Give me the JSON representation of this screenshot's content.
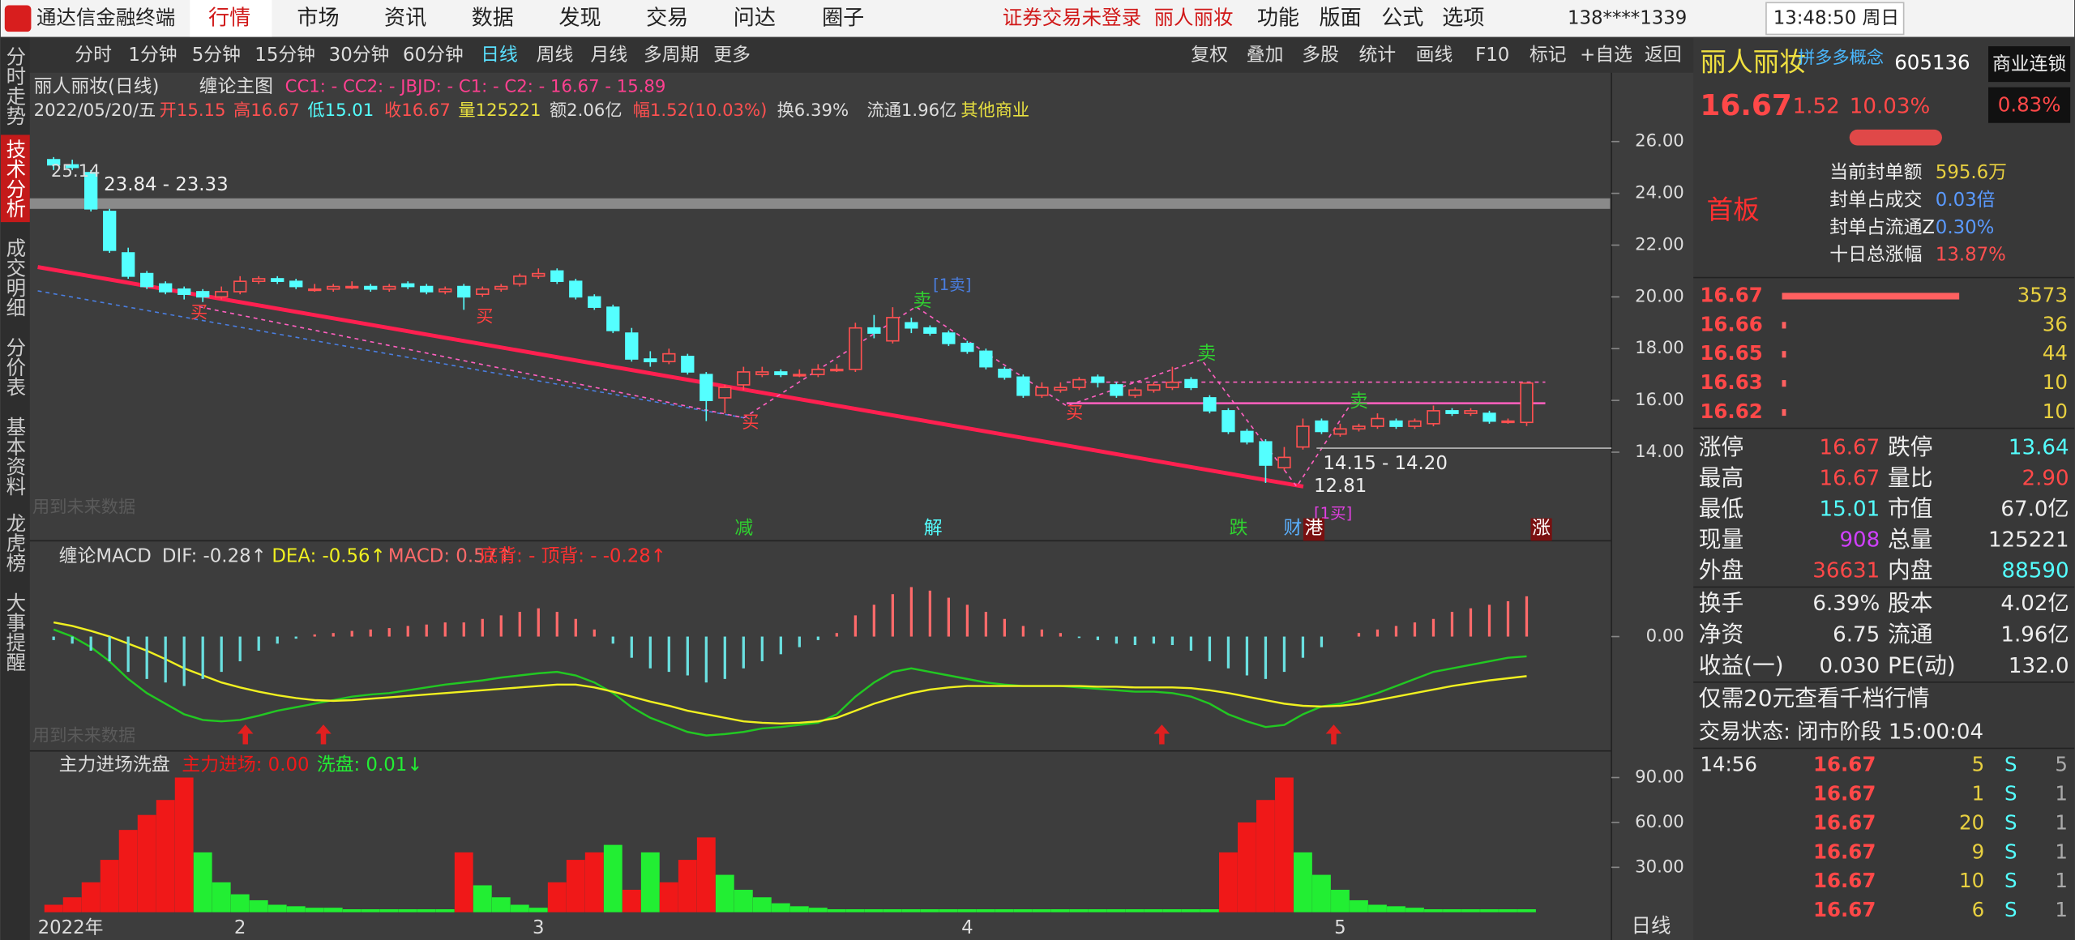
{
  "menu": {
    "app": "通达信金融终端",
    "items": [
      "行情",
      "市场",
      "资讯",
      "数据",
      "发现",
      "交易",
      "问达",
      "圈子"
    ],
    "notice": "证券交易未登录",
    "stock": "丽人丽妆",
    "right": [
      "功能",
      "版面",
      "公式",
      "选项"
    ],
    "phone": "138****1339",
    "clock": "13:48:50 周日"
  },
  "sidebar": [
    "分时走势",
    "技术分析",
    "成交明细",
    "分价表",
    "基本资料",
    "龙虎榜",
    "大事提醒"
  ],
  "toolbar": {
    "left": [
      "分时",
      "1分钟",
      "5分钟",
      "15分钟",
      "30分钟",
      "60分钟",
      "日线",
      "周线",
      "月线",
      "多周期",
      "更多"
    ],
    "right": [
      "复权",
      "叠加",
      "多股",
      "统计",
      "画线",
      "F10",
      "标记",
      "+自选",
      "返回"
    ]
  },
  "info": {
    "name": "丽人丽妆(日线)",
    "indicator": "缠论主图",
    "params": "CC1: -  CC2: -  JBJD: -  C1: -  C2: -  16.67 - 15.89",
    "date": "2022/05/20/五",
    "open": "开15.15",
    "high": "高16.67",
    "low": "低15.01",
    "close": "收16.67",
    "volume": "量125221",
    "amount": "额2.06亿",
    "change": "幅1.52(10.03%)",
    "turnover": "换6.39%",
    "float": "流通1.96亿",
    "sector": "其他商业"
  },
  "chart_data": [
    {
      "type": "candlestick",
      "ylim": [
        10.63,
        28.66
      ],
      "yticks": [
        {
          "value": 26,
          "label": "26.00"
        },
        {
          "value": 24,
          "label": "24.00"
        },
        {
          "value": 22,
          "label": "22.00"
        },
        {
          "value": 20,
          "label": "20.00"
        },
        {
          "value": 18,
          "label": "18.00"
        },
        {
          "value": 16,
          "label": "16.00"
        },
        {
          "value": 14,
          "label": "14.00"
        }
      ],
      "candles": [
        [
          25.3,
          25.4,
          24.9,
          25.1
        ],
        [
          25.1,
          25.3,
          24.9,
          25.0
        ],
        [
          24.8,
          24.9,
          23.3,
          23.4
        ],
        [
          23.3,
          23.4,
          21.7,
          21.8
        ],
        [
          21.7,
          21.9,
          20.7,
          20.8
        ],
        [
          20.9,
          21.0,
          20.3,
          20.4
        ],
        [
          20.5,
          20.6,
          20.1,
          20.2
        ],
        [
          20.3,
          20.4,
          19.9,
          20.1
        ],
        [
          20.2,
          20.3,
          19.8,
          20.0
        ],
        [
          20.0,
          20.4,
          19.9,
          20.2
        ],
        [
          20.2,
          20.8,
          20.1,
          20.6
        ],
        [
          20.6,
          20.8,
          20.5,
          20.7
        ],
        [
          20.7,
          20.8,
          20.5,
          20.6
        ],
        [
          20.6,
          20.7,
          20.3,
          20.4
        ],
        [
          20.3,
          20.5,
          20.2,
          20.3
        ],
        [
          20.3,
          20.5,
          20.2,
          20.4
        ],
        [
          20.4,
          20.6,
          20.3,
          20.4
        ],
        [
          20.4,
          20.5,
          20.2,
          20.3
        ],
        [
          20.3,
          20.5,
          20.2,
          20.4
        ],
        [
          20.5,
          20.6,
          20.3,
          20.4
        ],
        [
          20.4,
          20.5,
          20.1,
          20.2
        ],
        [
          20.2,
          20.4,
          20.1,
          20.3
        ],
        [
          20.4,
          20.5,
          19.5,
          20.0
        ],
        [
          20.1,
          20.4,
          20.0,
          20.3
        ],
        [
          20.3,
          20.5,
          20.2,
          20.4
        ],
        [
          20.5,
          20.9,
          20.4,
          20.8
        ],
        [
          20.8,
          21.1,
          20.7,
          20.9
        ],
        [
          21.0,
          21.1,
          20.5,
          20.6
        ],
        [
          20.6,
          20.7,
          19.9,
          20.0
        ],
        [
          20.0,
          20.1,
          19.5,
          19.6
        ],
        [
          19.6,
          19.7,
          18.6,
          18.7
        ],
        [
          18.6,
          18.8,
          17.5,
          17.6
        ],
        [
          17.6,
          17.9,
          17.3,
          17.5
        ],
        [
          17.5,
          18.0,
          17.4,
          17.8
        ],
        [
          17.7,
          17.8,
          17.0,
          17.1
        ],
        [
          17.0,
          17.1,
          15.2,
          16.0
        ],
        [
          16.1,
          16.6,
          15.5,
          16.5
        ],
        [
          16.6,
          17.3,
          16.4,
          17.1
        ],
        [
          17.0,
          17.3,
          16.9,
          17.1
        ],
        [
          17.1,
          17.2,
          16.9,
          17.0
        ],
        [
          17.0,
          17.2,
          16.9,
          17.0
        ],
        [
          17.0,
          17.4,
          16.9,
          17.2
        ],
        [
          17.2,
          17.4,
          17.1,
          17.2
        ],
        [
          17.2,
          19.0,
          17.1,
          18.8
        ],
        [
          18.8,
          19.3,
          18.4,
          18.6
        ],
        [
          18.3,
          19.6,
          18.2,
          19.2
        ],
        [
          19.0,
          19.2,
          18.6,
          18.8
        ],
        [
          18.8,
          18.9,
          18.5,
          18.6
        ],
        [
          18.6,
          18.7,
          18.1,
          18.2
        ],
        [
          18.2,
          18.3,
          17.8,
          17.9
        ],
        [
          17.9,
          18.0,
          17.2,
          17.3
        ],
        [
          17.2,
          17.3,
          16.8,
          16.9
        ],
        [
          16.9,
          17.0,
          16.1,
          16.2
        ],
        [
          16.2,
          16.7,
          16.1,
          16.5
        ],
        [
          16.4,
          16.7,
          16.3,
          16.5
        ],
        [
          16.5,
          16.9,
          16.4,
          16.8
        ],
        [
          16.9,
          17.0,
          16.5,
          16.7
        ],
        [
          16.6,
          16.7,
          16.1,
          16.2
        ],
        [
          16.2,
          16.5,
          16.1,
          16.4
        ],
        [
          16.4,
          16.7,
          16.3,
          16.6
        ],
        [
          16.5,
          17.3,
          16.4,
          16.7
        ],
        [
          16.8,
          16.9,
          16.4,
          16.5
        ],
        [
          16.1,
          16.2,
          15.5,
          15.6
        ],
        [
          15.6,
          15.7,
          14.7,
          14.8
        ],
        [
          14.8,
          14.9,
          14.3,
          14.4
        ],
        [
          14.4,
          14.5,
          12.81,
          13.5
        ],
        [
          13.4,
          14.2,
          13.3,
          13.8
        ],
        [
          14.2,
          15.3,
          14.1,
          15.0
        ],
        [
          15.2,
          15.3,
          14.7,
          14.8
        ],
        [
          14.7,
          15.1,
          14.6,
          14.9
        ],
        [
          14.9,
          15.1,
          14.8,
          15.0
        ],
        [
          15.0,
          15.5,
          14.9,
          15.3
        ],
        [
          15.2,
          15.3,
          14.9,
          15.0
        ],
        [
          15.0,
          15.3,
          14.9,
          15.2
        ],
        [
          15.1,
          15.8,
          15.0,
          15.6
        ],
        [
          15.6,
          15.7,
          15.4,
          15.5
        ],
        [
          15.5,
          15.7,
          15.4,
          15.6
        ],
        [
          15.5,
          15.6,
          15.1,
          15.2
        ],
        [
          15.2,
          15.3,
          15.1,
          15.2
        ],
        [
          15.15,
          16.67,
          15.01,
          16.67
        ]
      ],
      "up_color": "#ff5050",
      "down_color": "#54ffff",
      "annotations": {
        "high_mark": "25.14",
        "range_top": "23.84 - 23.33",
        "range_bottom": "14.15 - 14.20",
        "low_mark": "12.81",
        "sell1": "[1卖]",
        "buy1": "[1买]",
        "future_note": "用到未来数据"
      },
      "signals": {
        "sell": [
          "卖",
          "卖",
          "卖"
        ],
        "buy": [
          "买",
          "买",
          "买",
          "买"
        ],
        "bottom": [
          "减",
          "解",
          "跌",
          "财",
          "港",
          "涨"
        ]
      }
    },
    {
      "type": "macd",
      "title": "缠论MACD",
      "ylim": [
        -1.6,
        1.3
      ],
      "yticks": [
        {
          "value": 0,
          "label": "0.00"
        }
      ],
      "extra_legend": "底背: -  顶背: -  -0.28↑",
      "series": [
        {
          "name": "DIF: -0.28↑",
          "color": "#22c822",
          "values": [
            0.1,
            0.0,
            -0.15,
            -0.35,
            -0.6,
            -0.8,
            -0.95,
            -1.1,
            -1.18,
            -1.2,
            -1.18,
            -1.12,
            -1.05,
            -1.0,
            -0.95,
            -0.9,
            -0.85,
            -0.82,
            -0.8,
            -0.76,
            -0.72,
            -0.68,
            -0.65,
            -0.62,
            -0.58,
            -0.55,
            -0.52,
            -0.5,
            -0.55,
            -0.65,
            -0.8,
            -1.0,
            -1.15,
            -1.25,
            -1.35,
            -1.4,
            -1.38,
            -1.35,
            -1.3,
            -1.28,
            -1.25,
            -1.22,
            -1.1,
            -0.85,
            -0.65,
            -0.5,
            -0.45,
            -0.5,
            -0.55,
            -0.6,
            -0.65,
            -0.68,
            -0.7,
            -0.7,
            -0.7,
            -0.72,
            -0.74,
            -0.76,
            -0.78,
            -0.78,
            -0.8,
            -0.85,
            -0.95,
            -1.1,
            -1.2,
            -1.28,
            -1.25,
            -1.1,
            -0.99,
            -0.95,
            -0.88,
            -0.8,
            -0.7,
            -0.6,
            -0.5,
            -0.45,
            -0.4,
            -0.35,
            -0.3,
            -0.28
          ]
        },
        {
          "name": "DEA: -0.56↑",
          "color": "#f0f020",
          "values": [
            0.2,
            0.15,
            0.08,
            0.0,
            -0.1,
            -0.2,
            -0.32,
            -0.45,
            -0.55,
            -0.65,
            -0.72,
            -0.78,
            -0.83,
            -0.87,
            -0.9,
            -0.91,
            -0.9,
            -0.88,
            -0.86,
            -0.84,
            -0.82,
            -0.8,
            -0.78,
            -0.76,
            -0.74,
            -0.72,
            -0.7,
            -0.68,
            -0.68,
            -0.72,
            -0.78,
            -0.85,
            -0.92,
            -0.98,
            -1.05,
            -1.1,
            -1.15,
            -1.2,
            -1.22,
            -1.23,
            -1.22,
            -1.2,
            -1.15,
            -1.05,
            -0.95,
            -0.87,
            -0.8,
            -0.75,
            -0.72,
            -0.7,
            -0.7,
            -0.7,
            -0.7,
            -0.7,
            -0.7,
            -0.7,
            -0.71,
            -0.71,
            -0.72,
            -0.72,
            -0.72,
            -0.73,
            -0.76,
            -0.8,
            -0.85,
            -0.9,
            -0.95,
            -0.98,
            -0.99,
            -0.98,
            -0.95,
            -0.9,
            -0.85,
            -0.8,
            -0.75,
            -0.7,
            -0.66,
            -0.62,
            -0.59,
            -0.56
          ]
        },
        {
          "name": "MACD: 0.57↑",
          "color": "#ff6a6a",
          "negative_color": "#6ae0e0",
          "bars": true,
          "values": [
            -0.05,
            -0.1,
            -0.2,
            -0.35,
            -0.5,
            -0.6,
            -0.65,
            -0.7,
            -0.6,
            -0.5,
            -0.35,
            -0.2,
            -0.1,
            -0.03,
            0.03,
            0.05,
            0.08,
            0.1,
            0.12,
            0.15,
            0.17,
            0.2,
            0.2,
            0.25,
            0.3,
            0.35,
            0.4,
            0.35,
            0.25,
            0.1,
            -0.1,
            -0.3,
            -0.45,
            -0.5,
            -0.55,
            -0.65,
            -0.6,
            -0.45,
            -0.35,
            -0.25,
            -0.15,
            -0.05,
            0.05,
            0.3,
            0.45,
            0.6,
            0.7,
            0.65,
            0.55,
            0.45,
            0.35,
            0.25,
            0.15,
            0.1,
            0.05,
            -0.02,
            -0.05,
            -0.1,
            -0.12,
            -0.1,
            -0.12,
            -0.2,
            -0.35,
            -0.45,
            -0.55,
            -0.6,
            -0.5,
            -0.3,
            -0.15,
            0.0,
            0.05,
            0.1,
            0.15,
            0.2,
            0.25,
            0.35,
            0.4,
            0.45,
            0.5,
            0.57
          ]
        }
      ]
    },
    {
      "type": "bar",
      "title": "主力进场洗盘",
      "ylim": [
        0,
        106
      ],
      "yticks": [
        {
          "value": 90,
          "label": "90.00"
        },
        {
          "value": 60,
          "label": "60.00"
        },
        {
          "value": 30,
          "label": "30.00"
        }
      ],
      "series": [
        {
          "name": "主力进场: 0.00",
          "color": "#f01818"
        },
        {
          "name": "洗盘: 0.01↓",
          "color": "#22ee33"
        }
      ],
      "values": [
        5,
        10,
        20,
        35,
        55,
        65,
        75,
        90,
        40,
        20,
        12,
        8,
        5,
        4,
        3,
        3,
        2,
        2,
        2,
        2,
        2,
        2,
        40,
        18,
        10,
        5,
        3,
        20,
        35,
        40,
        45,
        15,
        40,
        20,
        35,
        50,
        25,
        15,
        10,
        6,
        4,
        3,
        2,
        2,
        2,
        2,
        2,
        2,
        2,
        2,
        2,
        2,
        2,
        2,
        2,
        2,
        2,
        2,
        2,
        2,
        2,
        2,
        2,
        40,
        60,
        75,
        90,
        40,
        25,
        15,
        8,
        5,
        4,
        3,
        2,
        2,
        2,
        2,
        2,
        2
      ],
      "bar_series": [
        0,
        0,
        0,
        0,
        0,
        0,
        0,
        0,
        1,
        1,
        1,
        1,
        1,
        1,
        1,
        1,
        1,
        1,
        1,
        1,
        1,
        1,
        0,
        1,
        1,
        1,
        1,
        0,
        0,
        0,
        1,
        0,
        1,
        0,
        0,
        0,
        1,
        1,
        1,
        1,
        1,
        1,
        1,
        1,
        1,
        1,
        1,
        1,
        1,
        1,
        1,
        1,
        1,
        1,
        1,
        1,
        1,
        1,
        1,
        1,
        1,
        1,
        1,
        0,
        0,
        0,
        0,
        1,
        1,
        1,
        1,
        1,
        1,
        1,
        1,
        1,
        1,
        1,
        1,
        1
      ],
      "categories": [
        "2022年",
        null,
        null,
        null,
        null,
        null,
        null,
        null,
        null,
        null,
        "2",
        null,
        null,
        null,
        null,
        null,
        null,
        null,
        null,
        null,
        null,
        null,
        null,
        null,
        null,
        null,
        "3",
        null,
        null,
        null,
        null,
        null,
        null,
        null,
        null,
        null,
        null,
        null,
        null,
        null,
        null,
        null,
        null,
        null,
        null,
        null,
        null,
        null,
        null,
        "4",
        null,
        null,
        null,
        null,
        null,
        null,
        null,
        null,
        null,
        null,
        null,
        null,
        null,
        null,
        null,
        null,
        null,
        null,
        null,
        "5",
        null,
        null,
        null,
        null,
        null,
        null,
        null,
        null,
        null,
        null
      ]
    }
  ],
  "quote": {
    "name": "丽人丽妆",
    "concept": "拼多多概念",
    "code": "605136",
    "tag": "商业连锁",
    "price": "16.67",
    "change": "1.52",
    "pct": "10.03%",
    "rank": "0.83%",
    "board": "首板",
    "seal": [
      [
        "当前封单额",
        "595.6万"
      ],
      [
        "封单占成交",
        "0.03倍"
      ],
      [
        "封单占流通Z",
        "0.30%"
      ],
      [
        "十日总涨幅",
        "13.87%"
      ]
    ],
    "book": [
      {
        "price": "16.67",
        "volume": 3573
      },
      {
        "price": "16.66",
        "volume": 36
      },
      {
        "price": "16.65",
        "volume": 44
      },
      {
        "price": "16.63",
        "volume": 10
      },
      {
        "price": "16.62",
        "volume": 10
      }
    ],
    "stats": [
      [
        "涨停",
        "16.67",
        "跌停",
        "13.64"
      ],
      [
        "最高",
        "16.67",
        "量比",
        "2.90"
      ],
      [
        "最低",
        "15.01",
        "市值",
        "67.0亿"
      ],
      [
        "现量",
        "908",
        "总量",
        "125221"
      ],
      [
        "外盘",
        "36631",
        "内盘",
        "88590"
      ]
    ],
    "stats2": [
      [
        "换手",
        "6.39%",
        "股本",
        "4.02亿"
      ],
      [
        "净资",
        "6.75",
        "流通",
        "1.96亿"
      ],
      [
        "收益(一)",
        "0.030",
        "PE(动)",
        "132.0"
      ]
    ],
    "notice": "仅需20元查看千档行情",
    "status": "交易状态: 闭市阶段 15:00:04",
    "tick_time": "14:56",
    "ticks": [
      [
        "16.67",
        "5",
        "S",
        "5"
      ],
      [
        "16.67",
        "1",
        "S",
        "1"
      ],
      [
        "16.67",
        "20",
        "S",
        "1"
      ],
      [
        "16.67",
        "9",
        "S",
        "1"
      ],
      [
        "16.67",
        "10",
        "S",
        "1"
      ],
      [
        "16.67",
        "6",
        "S",
        "1"
      ]
    ]
  },
  "period": "日线"
}
